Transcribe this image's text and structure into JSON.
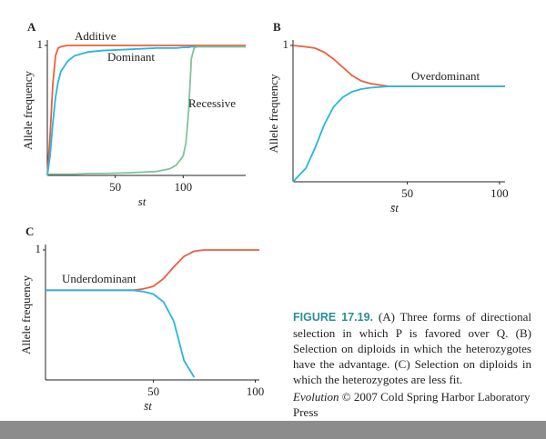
{
  "chart_data": [
    {
      "type": "line",
      "panel_label": "A",
      "ylabel": "Allele frequency",
      "xlabel": "st",
      "x": [
        0,
        2,
        4,
        6,
        8,
        10,
        15,
        20,
        30,
        40,
        60,
        80,
        90,
        95,
        100,
        102,
        104,
        106,
        108,
        110,
        130,
        146
      ],
      "series": [
        {
          "name": "Additive",
          "color": "#e8613f",
          "values": [
            0,
            0.3,
            0.7,
            0.92,
            0.98,
            0.99,
            1,
            1,
            1,
            1,
            1,
            1,
            1,
            1,
            1,
            1,
            1,
            1,
            1,
            1,
            1,
            1
          ]
        },
        {
          "name": "Dominant",
          "color": "#29b5e0",
          "values": [
            0,
            0.15,
            0.4,
            0.6,
            0.72,
            0.8,
            0.88,
            0.92,
            0.95,
            0.96,
            0.97,
            0.98,
            0.98,
            0.98,
            0.985,
            0.985,
            0.985,
            0.99,
            0.99,
            0.99,
            0.99,
            0.99
          ]
        },
        {
          "name": "Recessive",
          "color": "#7fc49a",
          "values": [
            0.01,
            0.01,
            0.01,
            0.01,
            0.01,
            0.01,
            0.01,
            0.01,
            0.015,
            0.015,
            0.02,
            0.03,
            0.05,
            0.08,
            0.15,
            0.25,
            0.5,
            0.9,
            0.98,
            0.99,
            0.99,
            0.99
          ]
        }
      ],
      "xlim": [
        0,
        146
      ],
      "ylim": [
        0,
        1
      ],
      "xticks": [
        50,
        100
      ],
      "yticks": [
        1
      ]
    },
    {
      "type": "line",
      "panel_label": "B",
      "ylabel": "Allele frequency",
      "xlabel": "s̄t",
      "annotation": "Overdominant",
      "x": [
        -12,
        -5,
        0,
        5,
        10,
        15,
        20,
        25,
        30,
        40,
        50,
        70,
        103
      ],
      "series": [
        {
          "color": "#e8613f",
          "values": [
            1,
            0.99,
            0.98,
            0.95,
            0.9,
            0.84,
            0.78,
            0.74,
            0.72,
            0.7,
            0.7,
            0.7,
            0.7
          ]
        },
        {
          "color": "#29b5e0",
          "values": [
            0,
            0.1,
            0.25,
            0.42,
            0.55,
            0.62,
            0.66,
            0.68,
            0.69,
            0.7,
            0.7,
            0.7,
            0.7
          ]
        }
      ],
      "xlim": [
        -12,
        103
      ],
      "ylim": [
        0,
        1
      ],
      "xticks": [
        50,
        100
      ],
      "yticks": [
        1
      ]
    },
    {
      "type": "line",
      "panel_label": "C",
      "ylabel": "Allele frequency",
      "xlabel": "s̄t",
      "annotation": "Underdominant",
      "x": [
        -3,
        20,
        40,
        45,
        50,
        55,
        60,
        65,
        70,
        75,
        102
      ],
      "series": [
        {
          "color": "#e8613f",
          "values": [
            0.69,
            0.69,
            0.69,
            0.7,
            0.72,
            0.78,
            0.87,
            0.95,
            0.99,
            1,
            1
          ]
        },
        {
          "color": "#29b5e0",
          "values": [
            0.69,
            0.69,
            0.69,
            0.68,
            0.66,
            0.6,
            0.45,
            0.15,
            0.02,
            null,
            null
          ]
        }
      ],
      "xlim": [
        -3,
        102
      ],
      "ylim": [
        0,
        1
      ],
      "xticks": [
        50,
        100
      ],
      "yticks": [
        1
      ]
    }
  ],
  "caption": {
    "figure_label": "FIGURE 17.19.",
    "text": "(A) Three forms of directional selection in which P is favored over Q. (B) Selection on diploids in which the heterozygotes have the advantage. (C) Selection on diploids in which the heterozygotes are less fit.",
    "source_title": "Evolution",
    "source_rest": "© 2007 Cold Spring Harbor Laboratory Press"
  }
}
